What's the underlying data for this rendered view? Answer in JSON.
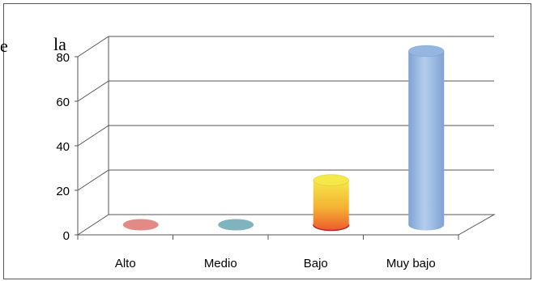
{
  "stray_text": {
    "left": "e",
    "right": "la"
  },
  "colors": {
    "border": "#555555",
    "grid": "#555555",
    "alto": "#e38a86",
    "medio": "#7fb3bd",
    "bajo_top": "#f5e84a",
    "bajo_bottom": "#ee5a2b",
    "muy_bajo": "#94b6e0"
  },
  "chart_data": {
    "type": "bar",
    "bar_shape": "cylinder-3d",
    "categories": [
      "Alto",
      "Medio",
      "Bajo",
      "Muy bajo"
    ],
    "values": [
      0,
      0,
      20,
      78
    ],
    "ylim": [
      0,
      80
    ],
    "yticks": [
      0,
      20,
      40,
      60,
      80
    ],
    "grid": true,
    "legend": "none",
    "title": "",
    "xlabel": "",
    "ylabel": ""
  }
}
